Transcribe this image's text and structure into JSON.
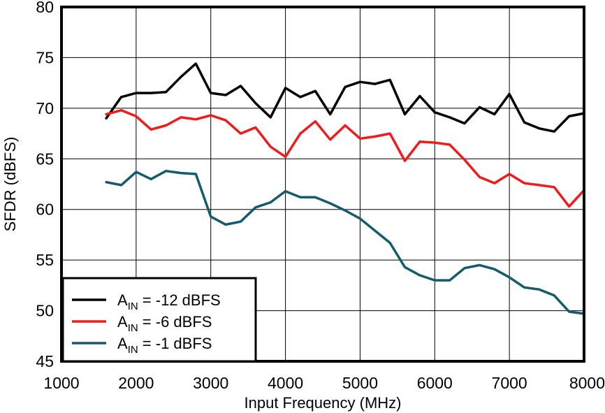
{
  "chart_data": {
    "type": "line",
    "title": "",
    "xlabel": "Input Frequency (MHz)",
    "ylabel": "SFDR (dBFS)",
    "xlim": [
      1000,
      8000
    ],
    "ylim": [
      45,
      80
    ],
    "xticks": [
      1000,
      2000,
      3000,
      4000,
      5000,
      6000,
      7000,
      8000
    ],
    "yticks": [
      45,
      50,
      55,
      60,
      65,
      70,
      75,
      80
    ],
    "grid": true,
    "legend_position": "bottom-left",
    "series": [
      {
        "name_main": "A",
        "name_sub": "IN",
        "name_rest": " = -12 dBFS",
        "color": "#000000",
        "x": [
          1600,
          1800,
          2000,
          2200,
          2400,
          2600,
          2800,
          3000,
          3200,
          3400,
          3600,
          3800,
          4000,
          4200,
          4400,
          4600,
          4800,
          5000,
          5200,
          5400,
          5600,
          5800,
          6000,
          6200,
          6400,
          6600,
          6800,
          7000,
          7200,
          7400,
          7600,
          7800,
          8000
        ],
        "y": [
          69.0,
          71.1,
          71.5,
          71.5,
          71.6,
          73.1,
          74.4,
          71.5,
          71.3,
          72.2,
          70.5,
          69.1,
          72.0,
          71.1,
          71.7,
          69.4,
          72.1,
          72.6,
          72.4,
          72.8,
          69.4,
          71.2,
          69.6,
          69.1,
          68.5,
          70.1,
          69.4,
          71.4,
          68.6,
          68.0,
          67.7,
          69.2,
          69.5
        ]
      },
      {
        "name_main": "A",
        "name_sub": "IN",
        "name_rest": " = -6 dBFS",
        "color": "#ee1c1c",
        "x": [
          1600,
          1800,
          2000,
          2200,
          2400,
          2600,
          2800,
          3000,
          3200,
          3400,
          3600,
          3800,
          4000,
          4200,
          4400,
          4600,
          4800,
          5000,
          5200,
          5400,
          5600,
          5800,
          6000,
          6200,
          6400,
          6600,
          6800,
          7000,
          7200,
          7400,
          7600,
          7800,
          8000
        ],
        "y": [
          69.4,
          69.8,
          69.2,
          67.9,
          68.3,
          69.1,
          68.9,
          69.3,
          68.8,
          67.5,
          68.1,
          66.2,
          65.2,
          67.5,
          68.7,
          66.9,
          68.3,
          67.0,
          67.2,
          67.5,
          64.8,
          66.7,
          66.6,
          66.4,
          64.9,
          63.2,
          62.6,
          63.5,
          62.6,
          62.4,
          62.2,
          60.3,
          61.9
        ]
      },
      {
        "name_main": "A",
        "name_sub": "IN",
        "name_rest": " = -1 dBFS",
        "color": "#155b6b",
        "x": [
          1600,
          1800,
          2000,
          2200,
          2400,
          2600,
          2800,
          3000,
          3200,
          3400,
          3600,
          3800,
          4000,
          4200,
          4400,
          4600,
          4800,
          5000,
          5200,
          5400,
          5600,
          5800,
          6000,
          6200,
          6400,
          6600,
          6800,
          7000,
          7200,
          7400,
          7600,
          7800,
          8000
        ],
        "y": [
          62.7,
          62.4,
          63.7,
          63.0,
          63.8,
          63.6,
          63.5,
          59.3,
          58.5,
          58.8,
          60.2,
          60.7,
          61.8,
          61.2,
          61.2,
          60.6,
          59.9,
          59.1,
          57.9,
          56.7,
          54.3,
          53.5,
          53.0,
          53.0,
          54.2,
          54.5,
          54.1,
          53.3,
          52.3,
          52.1,
          51.5,
          49.9,
          49.7
        ]
      }
    ]
  }
}
